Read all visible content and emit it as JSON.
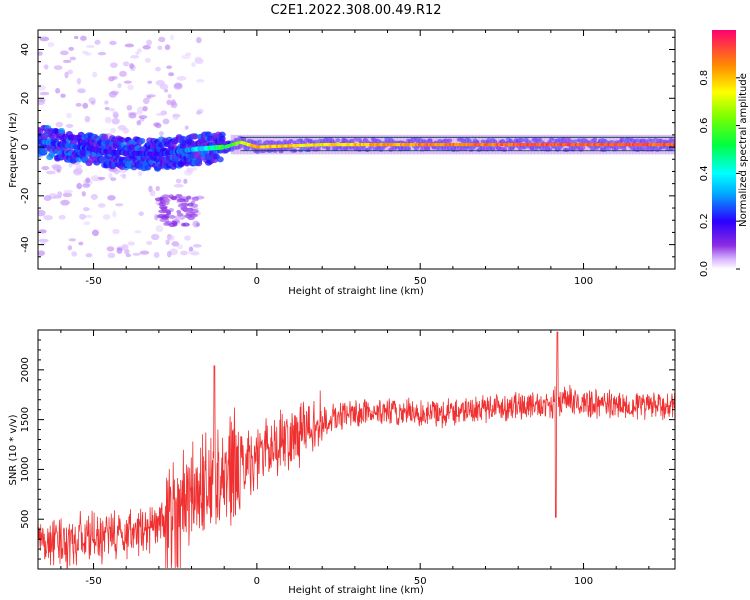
{
  "title": "C2E1.2022.308.00.49.R12",
  "chart_data": [
    {
      "type": "heatmap",
      "xlabel": "Height of straight line (km)",
      "ylabel": "Frequency (Hz)",
      "xlim": [
        -67,
        128
      ],
      "ylim": [
        -50,
        48
      ],
      "x_ticks": [
        -50,
        0,
        50,
        100
      ],
      "y_ticks": [
        -40,
        -20,
        0,
        20,
        40
      ],
      "colorbar": {
        "label": "Normalized spectral amplitude",
        "range": [
          0,
          1
        ],
        "ticks": [
          0.0,
          0.2,
          0.4,
          0.6,
          0.8
        ]
      },
      "ridge": {
        "description_points": [
          {
            "x": -65,
            "y": 2,
            "amp": 0.25
          },
          {
            "x": -45,
            "y": -2,
            "amp": 0.2
          },
          {
            "x": -30,
            "y": -3,
            "amp": 0.2
          },
          {
            "x": -20,
            "y": -1,
            "amp": 0.3
          },
          {
            "x": -10,
            "y": 0,
            "amp": 0.55
          },
          {
            "x": -5,
            "y": 2,
            "amp": 0.65
          },
          {
            "x": 0,
            "y": 0,
            "amp": 0.8
          },
          {
            "x": 20,
            "y": 1,
            "amp": 0.75
          },
          {
            "x": 50,
            "y": 1,
            "amp": 0.85
          },
          {
            "x": 90,
            "y": 1,
            "amp": 0.9
          },
          {
            "x": 128,
            "y": 1,
            "amp": 0.9
          }
        ]
      }
    },
    {
      "type": "line",
      "xlabel": "Height of straight line (km)",
      "ylabel": "SNR (10 * v/v)",
      "xlim": [
        -67,
        128
      ],
      "ylim": [
        0,
        2400
      ],
      "x_ticks": [
        -50,
        0,
        50,
        100
      ],
      "y_ticks": [
        500,
        1000,
        1500,
        2000
      ],
      "series": [
        {
          "color": "#f03030",
          "envelope": [
            {
              "x": -67,
              "y": 250
            },
            {
              "x": -55,
              "y": 300
            },
            {
              "x": -45,
              "y": 330
            },
            {
              "x": -35,
              "y": 380
            },
            {
              "x": -28,
              "y": 450
            },
            {
              "x": -20,
              "y": 750
            },
            {
              "x": -15,
              "y": 900
            },
            {
              "x": -10,
              "y": 950
            },
            {
              "x": -5,
              "y": 1050
            },
            {
              "x": 0,
              "y": 1150
            },
            {
              "x": 5,
              "y": 1250
            },
            {
              "x": 10,
              "y": 1330
            },
            {
              "x": 15,
              "y": 1400
            },
            {
              "x": 20,
              "y": 1470
            },
            {
              "x": 25,
              "y": 1530
            },
            {
              "x": 35,
              "y": 1580
            },
            {
              "x": 50,
              "y": 1560
            },
            {
              "x": 60,
              "y": 1580
            },
            {
              "x": 70,
              "y": 1620
            },
            {
              "x": 80,
              "y": 1640
            },
            {
              "x": 90,
              "y": 1650
            },
            {
              "x": 93,
              "y": 1700
            },
            {
              "x": 100,
              "y": 1660
            },
            {
              "x": 110,
              "y": 1650
            },
            {
              "x": 120,
              "y": 1640
            },
            {
              "x": 128,
              "y": 1630
            }
          ],
          "spikes": [
            {
              "x": -13,
              "y": 2040
            },
            {
              "x": 92,
              "y": 2380
            },
            {
              "x": 91.5,
              "y": 520
            }
          ]
        }
      ]
    }
  ]
}
